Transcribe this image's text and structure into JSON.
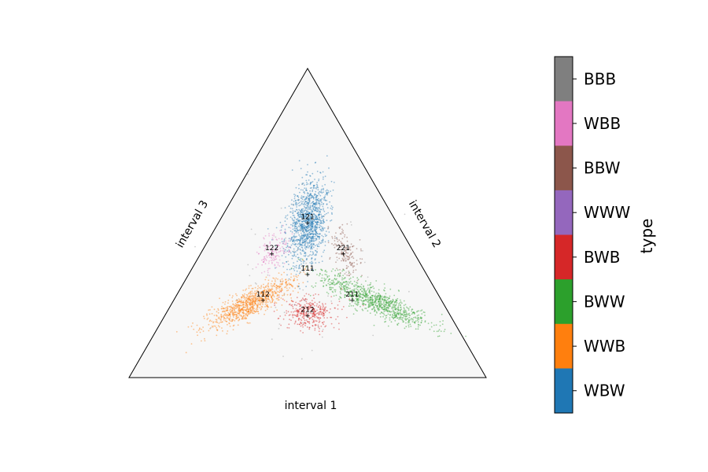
{
  "chart_data": {
    "type": "scatter",
    "subtype": "ternary",
    "axes": {
      "bottom": "interval 1",
      "right": "interval 2",
      "left": "interval 3"
    },
    "reference_points": [
      {
        "label": "111",
        "a": 0.3333,
        "b": 0.3333,
        "c": 0.3333
      },
      {
        "label": "121",
        "a": 0.25,
        "b": 0.5,
        "c": 0.25
      },
      {
        "label": "221",
        "a": 0.4,
        "b": 0.4,
        "c": 0.2
      },
      {
        "label": "122",
        "a": 0.2,
        "b": 0.4,
        "c": 0.4
      },
      {
        "label": "112",
        "a": 0.25,
        "b": 0.25,
        "c": 0.5
      },
      {
        "label": "211",
        "a": 0.5,
        "b": 0.25,
        "c": 0.25
      },
      {
        "label": "212",
        "a": 0.4,
        "b": 0.2,
        "c": 0.4
      }
    ],
    "clusters": [
      {
        "type": "WBW",
        "color": "#1f77b4",
        "center": {
          "a": 0.25,
          "b": 0.5,
          "c": 0.25
        },
        "count": 1200
      },
      {
        "type": "WWB",
        "color": "#ff7f0e",
        "center": {
          "a": 0.22,
          "b": 0.24,
          "c": 0.54
        },
        "count": 900
      },
      {
        "type": "BWW",
        "color": "#2ca02c",
        "center": {
          "a": 0.56,
          "b": 0.25,
          "c": 0.19
        },
        "count": 900
      },
      {
        "type": "BWB",
        "color": "#d62728",
        "center": {
          "a": 0.4,
          "b": 0.21,
          "c": 0.39
        },
        "count": 350
      },
      {
        "type": "BBW",
        "color": "#8c564b",
        "center": {
          "a": 0.4,
          "b": 0.41,
          "c": 0.19
        },
        "count": 160
      },
      {
        "type": "WBB",
        "color": "#e377c2",
        "center": {
          "a": 0.2,
          "b": 0.41,
          "c": 0.39
        },
        "count": 150
      },
      {
        "type": "BBB",
        "color": "#7f7f7f",
        "center": {
          "a": 0.33,
          "b": 0.33,
          "c": 0.34
        },
        "count": 60
      }
    ],
    "colorbar": {
      "title": "type",
      "entries": [
        {
          "label": "BBB",
          "color": "#7f7f7f"
        },
        {
          "label": "WBB",
          "color": "#e377c2"
        },
        {
          "label": "BBW",
          "color": "#8c564b"
        },
        {
          "label": "WWW",
          "color": "#9467bd"
        },
        {
          "label": "BWB",
          "color": "#d62728"
        },
        {
          "label": "BWW",
          "color": "#2ca02c"
        },
        {
          "label": "WWB",
          "color": "#ff7f0e"
        },
        {
          "label": "WBW",
          "color": "#1f77b4"
        }
      ]
    },
    "background_color": "#f7f7f7"
  }
}
